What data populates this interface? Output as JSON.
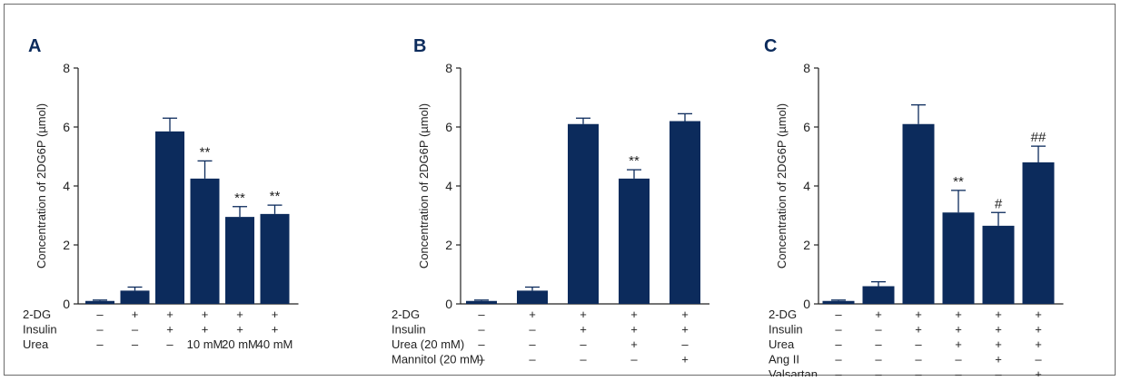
{
  "colors": {
    "bar": "#0c2b5c",
    "axis": "#222222",
    "text": "#222222"
  },
  "chart_data": [
    {
      "panel_label": "A",
      "type": "bar",
      "ylabel": "Concentration of 2DG6P (µmol)",
      "ylim": [
        0,
        8
      ],
      "yticks": [
        "0",
        "2",
        "4",
        "6",
        "8"
      ],
      "values": [
        0.1,
        0.45,
        5.85,
        4.25,
        2.95,
        3.05
      ],
      "errors": [
        0.03,
        0.12,
        0.45,
        0.6,
        0.35,
        0.3
      ],
      "annotations": [
        "",
        "",
        "",
        "**",
        "**",
        "**"
      ],
      "condition_rows": [
        {
          "label": "2-DG",
          "cells": [
            "–",
            "+",
            "+",
            "+",
            "+",
            "+"
          ]
        },
        {
          "label": "Insulin",
          "cells": [
            "–",
            "–",
            "+",
            "+",
            "+",
            "+"
          ]
        },
        {
          "label": "Urea",
          "cells": [
            "–",
            "–",
            "–",
            "10 mM",
            "20 mM",
            "40 mM"
          ]
        }
      ]
    },
    {
      "panel_label": "B",
      "type": "bar",
      "ylabel": "Concentration of 2DG6P (µmol)",
      "ylim": [
        0,
        8
      ],
      "yticks": [
        "0",
        "2",
        "4",
        "6",
        "8"
      ],
      "values": [
        0.1,
        0.45,
        6.1,
        4.25,
        6.2
      ],
      "errors": [
        0.03,
        0.12,
        0.2,
        0.3,
        0.25
      ],
      "annotations": [
        "",
        "",
        "",
        "**",
        ""
      ],
      "condition_rows": [
        {
          "label": "2-DG",
          "cells": [
            "–",
            "+",
            "+",
            "+",
            "+"
          ]
        },
        {
          "label": "Insulin",
          "cells": [
            "–",
            "–",
            "+",
            "+",
            "+"
          ]
        },
        {
          "label": "Urea (20 mM)",
          "cells": [
            "–",
            "–",
            "–",
            "+",
            "–"
          ]
        },
        {
          "label": "Mannitol (20 mM)",
          "cells": [
            "–",
            "–",
            "–",
            "–",
            "+"
          ]
        }
      ]
    },
    {
      "panel_label": "C",
      "type": "bar",
      "ylabel": "Concentration of 2DG6P (µmol)",
      "ylim": [
        0,
        8
      ],
      "yticks": [
        "0",
        "2",
        "4",
        "6",
        "8"
      ],
      "values": [
        0.1,
        0.6,
        6.1,
        3.1,
        2.65,
        4.8
      ],
      "errors": [
        0.03,
        0.15,
        0.65,
        0.75,
        0.45,
        0.55
      ],
      "annotations": [
        "",
        "",
        "",
        "**",
        "#",
        "##"
      ],
      "condition_rows": [
        {
          "label": "2-DG",
          "cells": [
            "–",
            "+",
            "+",
            "+",
            "+",
            "+"
          ]
        },
        {
          "label": "Insulin",
          "cells": [
            "–",
            "–",
            "+",
            "+",
            "+",
            "+"
          ]
        },
        {
          "label": "Urea",
          "cells": [
            "–",
            "–",
            "–",
            "+",
            "+",
            "+"
          ]
        },
        {
          "label": "Ang II",
          "cells": [
            "–",
            "–",
            "–",
            "–",
            "+",
            "–"
          ]
        },
        {
          "label": "Valsartan",
          "cells": [
            "–",
            "–",
            "–",
            "–",
            "–",
            "+"
          ]
        }
      ]
    }
  ]
}
